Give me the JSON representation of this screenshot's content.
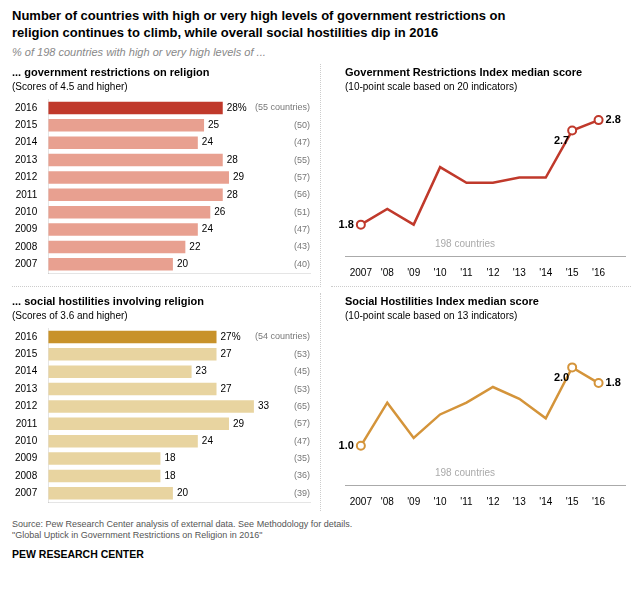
{
  "title": "Number of countries with high or very high levels of government restrictions on\nreligion continues to climb, while overall social hostilities dip in 2016",
  "subtitle": "% of 198 countries with high or very high levels of ...",
  "annotations": [
    "Source: Pew Research Center analysis of external data. See Methodology for details.\n\"Global Uptick in Government Restrictions on Religion in 2016\"",
    "PEW RESEARCH CENTER"
  ],
  "chart_data": [
    {
      "type": "bar",
      "orientation": "horizontal",
      "title": "... government restrictions on religion",
      "subtitle": "(Scores of 4.5 and higher)",
      "categories": [
        "2016",
        "2015",
        "2014",
        "2013",
        "2012",
        "2011",
        "2010",
        "2009",
        "2008",
        "2007"
      ],
      "values": [
        28,
        25,
        24,
        28,
        29,
        28,
        26,
        24,
        22,
        20
      ],
      "value_labels": [
        "28%",
        "25",
        "24",
        "28",
        "29",
        "28",
        "26",
        "24",
        "22",
        "20"
      ],
      "annotations": [
        "(55 countries)",
        "(50)",
        "(47)",
        "(55)",
        "(57)",
        "(56)",
        "(51)",
        "(47)",
        "(43)",
        "(40)"
      ],
      "colors": [
        "#c0392b",
        "#e8a090",
        "#e8a090",
        "#e8a090",
        "#e8a090",
        "#e8a090",
        "#e8a090",
        "#e8a090",
        "#e8a090",
        "#e8a090"
      ],
      "xlim": [
        0,
        42
      ],
      "grid": false,
      "data_labels": true,
      "tick_labels": "y"
    },
    {
      "type": "line",
      "title": "Government Restrictions Index median score",
      "subtitle": "(10-point scale based on 20 indicators)",
      "x": [
        2007,
        2008,
        2009,
        2010,
        2011,
        2012,
        2013,
        2014,
        2015,
        2016
      ],
      "values": [
        1.8,
        1.95,
        1.8,
        2.35,
        2.2,
        2.2,
        2.25,
        2.25,
        2.7,
        2.8
      ],
      "value_labels": [
        "1.8",
        null,
        null,
        null,
        null,
        null,
        null,
        null,
        "2.7",
        "2.8"
      ],
      "color": "#c0392b",
      "marker": "circle",
      "annotations": [
        "198 countries"
      ],
      "xlim": [
        2006.4,
        2017.0
      ],
      "xticks": [
        2007,
        {
          "value": 2008,
          "label": "'08"
        },
        {
          "value": 2009,
          "label": "'09"
        },
        {
          "value": 2010,
          "label": "'10"
        },
        {
          "value": 2011,
          "label": "'11"
        },
        {
          "value": 2012,
          "label": "'12"
        },
        {
          "value": 2013,
          "label": "'13"
        },
        {
          "value": 2014,
          "label": "'14"
        },
        {
          "value": 2015,
          "label": "'15"
        },
        {
          "value": 2016,
          "label": "'16"
        }
      ],
      "ylim": [
        1.5,
        3.0
      ],
      "grid": false,
      "data_labels": true,
      "tick_labels": "x"
    },
    {
      "type": "bar",
      "orientation": "horizontal",
      "title": "... social hostilities involving religion",
      "subtitle": "(Scores of 3.6 and higher)",
      "categories": [
        "2016",
        "2015",
        "2014",
        "2013",
        "2012",
        "2011",
        "2010",
        "2009",
        "2008",
        "2007"
      ],
      "values": [
        27,
        27,
        23,
        27,
        33,
        29,
        24,
        18,
        18,
        20
      ],
      "value_labels": [
        "27%",
        "27",
        "23",
        "27",
        "33",
        "29",
        "24",
        "18",
        "18",
        "20"
      ],
      "annotations": [
        "(54 countries)",
        "(53)",
        "(45)",
        "(53)",
        "(65)",
        "(57)",
        "(47)",
        "(35)",
        "(36)",
        "(39)"
      ],
      "colors": [
        "#c8922a",
        "#e8d4a0",
        "#e8d4a0",
        "#e8d4a0",
        "#e8d4a0",
        "#e8d4a0",
        "#e8d4a0",
        "#e8d4a0",
        "#e8d4a0",
        "#e8d4a0"
      ],
      "xlim": [
        0,
        42
      ],
      "grid": false,
      "data_labels": true,
      "tick_labels": "y"
    },
    {
      "type": "line",
      "title": "Social Hostilities Index median score",
      "subtitle": "(10-point scale based on 13 indicators)",
      "x": [
        2007,
        2008,
        2009,
        2010,
        2011,
        2012,
        2013,
        2014,
        2015,
        2016
      ],
      "values": [
        1.0,
        1.55,
        1.1,
        1.4,
        1.55,
        1.75,
        1.6,
        1.35,
        2.0,
        1.8
      ],
      "value_labels": [
        "1.0",
        null,
        null,
        null,
        null,
        null,
        null,
        null,
        "2.0",
        "1.8"
      ],
      "color": "#d4943a",
      "marker": "circle",
      "annotations": [
        "198 countries"
      ],
      "xlim": [
        2006.4,
        2017.0
      ],
      "xticks": [
        2007,
        {
          "value": 2008,
          "label": "'08"
        },
        {
          "value": 2009,
          "label": "'09"
        },
        {
          "value": 2010,
          "label": "'10"
        },
        {
          "value": 2011,
          "label": "'11"
        },
        {
          "value": 2012,
          "label": "'12"
        },
        {
          "value": 2013,
          "label": "'13"
        },
        {
          "value": 2014,
          "label": "'14"
        },
        {
          "value": 2015,
          "label": "'15"
        },
        {
          "value": 2016,
          "label": "'16"
        }
      ],
      "ylim": [
        0.5,
        2.5
      ],
      "grid": false,
      "data_labels": true,
      "tick_labels": "x"
    }
  ]
}
